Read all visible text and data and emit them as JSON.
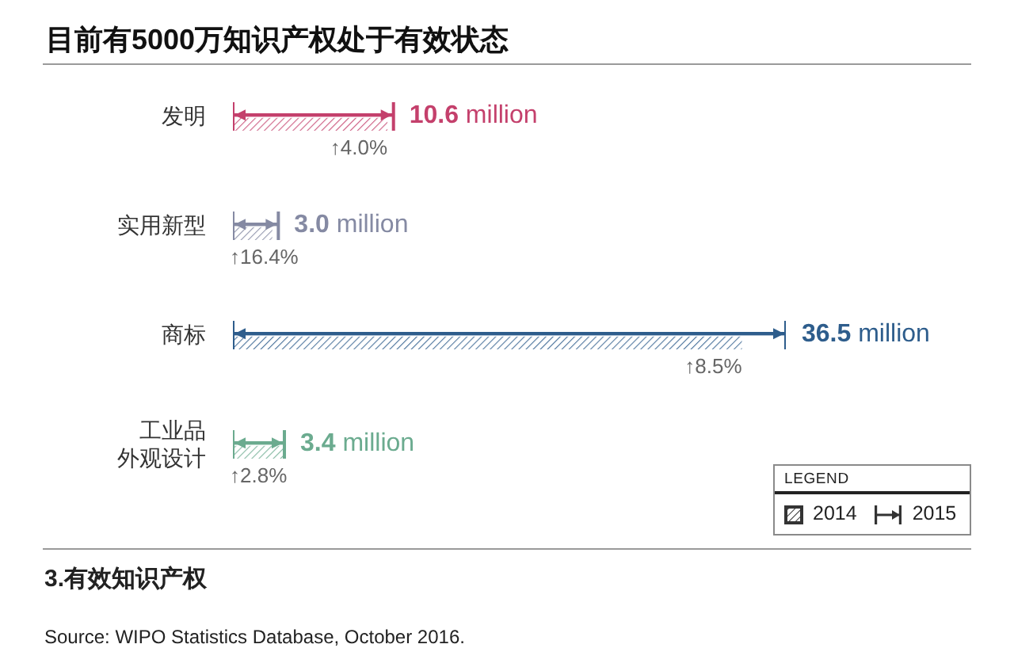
{
  "chart_data": {
    "type": "bar",
    "orientation": "horizontal",
    "title": "目前有5000万知识产权处于有效状态",
    "categories": [
      "发明",
      "实用新型",
      "商标",
      "工业品外观设计"
    ],
    "series": [
      {
        "name": "2014",
        "color": "#333333",
        "colors": [
          "#c4406c",
          "#858aa3",
          "#2e5d8c",
          "#6bab8f"
        ],
        "values": [
          10.2,
          2.6,
          33.6,
          3.3
        ]
      },
      {
        "name": "2015",
        "color": "#333333",
        "colors": [
          "#c4406c",
          "#858aa3",
          "#2e5d8c",
          "#6bab8f"
        ],
        "values": [
          10.6,
          3.0,
          36.5,
          3.4
        ],
        "value_labels": [
          "10.6 million",
          "3.0 million",
          "36.5 million",
          "3.4 million"
        ]
      }
    ],
    "legend": "bottom right",
    "legend_title": "LEGEND",
    "tick_labels": "y",
    "annotations": [
      {
        "text": "↑4.0%",
        "x": 10.2,
        "y": "发明"
      },
      {
        "text": "↑16.4%",
        "x": 2.6,
        "y": "实用新型"
      },
      {
        "text": "↑8.5%",
        "x": 33.6,
        "y": "商标"
      },
      {
        "text": "↑2.8%",
        "x": 3.3,
        "y": "工业品外观设计"
      },
      "3.有效知识产权",
      "Source: WIPO Statistics Database, October 2016."
    ]
  }
}
